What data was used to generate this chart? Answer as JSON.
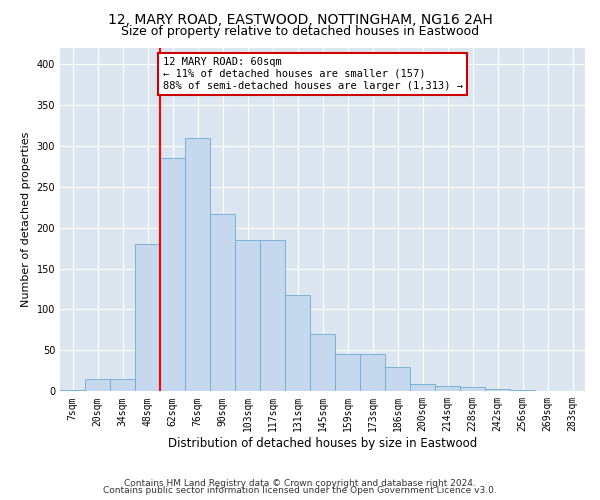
{
  "title1": "12, MARY ROAD, EASTWOOD, NOTTINGHAM, NG16 2AH",
  "title2": "Size of property relative to detached houses in Eastwood",
  "xlabel": "Distribution of detached houses by size in Eastwood",
  "ylabel": "Number of detached properties",
  "categories": [
    "7sqm",
    "20sqm",
    "34sqm",
    "48sqm",
    "62sqm",
    "76sqm",
    "90sqm",
    "103sqm",
    "117sqm",
    "131sqm",
    "145sqm",
    "159sqm",
    "173sqm",
    "186sqm",
    "200sqm",
    "214sqm",
    "228sqm",
    "242sqm",
    "256sqm",
    "269sqm",
    "283sqm"
  ],
  "values": [
    2,
    15,
    15,
    180,
    285,
    310,
    217,
    185,
    185,
    118,
    70,
    46,
    46,
    30,
    9,
    7,
    5,
    3,
    2,
    1,
    1
  ],
  "bar_color": "#c5d8ed",
  "bar_edge_color": "#6aaed6",
  "red_line_index": 4,
  "annotation_line1": "12 MARY ROAD: 60sqm",
  "annotation_line2": "← 11% of detached houses are smaller (157)",
  "annotation_line3": "88% of semi-detached houses are larger (1,313) →",
  "annotation_box_color": "#ffffff",
  "annotation_box_edge": "#cc0000",
  "ylim": [
    0,
    420
  ],
  "yticks": [
    0,
    50,
    100,
    150,
    200,
    250,
    300,
    350,
    400
  ],
  "bg_color": "#dce6f0",
  "footer1": "Contains HM Land Registry data © Crown copyright and database right 2024.",
  "footer2": "Contains public sector information licensed under the Open Government Licence v3.0.",
  "title1_fontsize": 10,
  "title2_fontsize": 9,
  "xlabel_fontsize": 8.5,
  "ylabel_fontsize": 8,
  "tick_fontsize": 7,
  "annotation_fontsize": 7.5,
  "footer_fontsize": 6.5
}
